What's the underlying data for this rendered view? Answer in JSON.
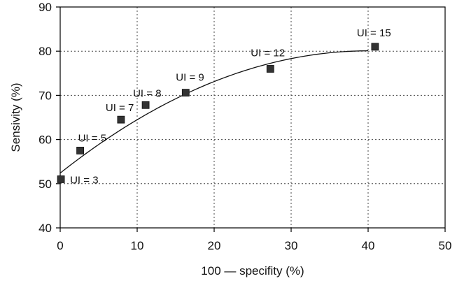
{
  "chart_data": {
    "type": "scatter",
    "title": "",
    "xlabel": "100 — specifity (%)",
    "ylabel": "Sensivity (%)",
    "xlim": [
      0,
      50
    ],
    "ylim": [
      40,
      90
    ],
    "xticks": [
      0,
      10,
      20,
      30,
      40,
      50
    ],
    "yticks": [
      40,
      50,
      60,
      70,
      80,
      90
    ],
    "grid": true,
    "marker_color": "#333333",
    "points": [
      {
        "label": "UI = 3",
        "x": 0.1,
        "y": 51.0
      },
      {
        "label": "UI = 5",
        "x": 2.6,
        "y": 57.5
      },
      {
        "label": "UI = 7",
        "x": 7.9,
        "y": 64.5
      },
      {
        "label": "UI = 8",
        "x": 11.1,
        "y": 67.8
      },
      {
        "label": "UI = 9",
        "x": 16.3,
        "y": 70.6
      },
      {
        "label": "UI = 12",
        "x": 27.3,
        "y": 76.0
      },
      {
        "label": "UI = 15",
        "x": 40.9,
        "y": 81.0
      }
    ],
    "trendline": {
      "type": "quadratic",
      "coefficients": [
        52.4,
        1.38,
        -0.0172
      ],
      "x_range": [
        0,
        40
      ]
    }
  }
}
